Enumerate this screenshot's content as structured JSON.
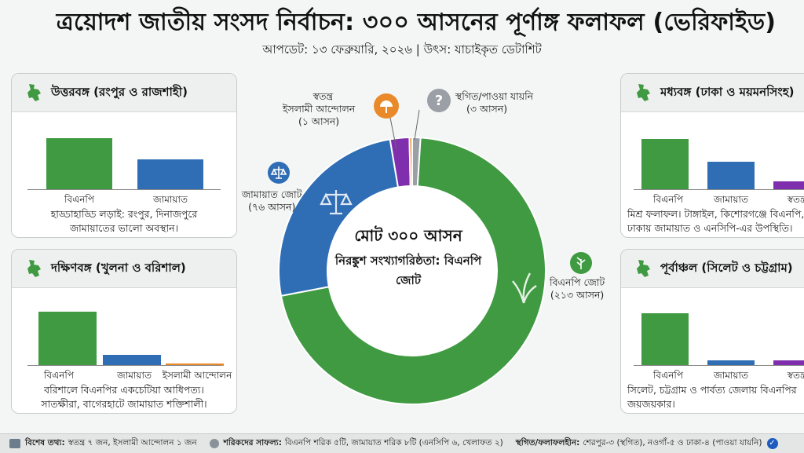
{
  "title": "ত্রয়োদশ জাতীয় সংসদ নির্বাচন: ৩০০ আসনের পূর্ণাঙ্গ ফলাফল (ভেরিফাইড)",
  "subtitle": "আপডেট: ১৩ ফেব্রুয়ারি, ২০২৬ | উৎস: যাচাইকৃত ডেটাশিট",
  "colors": {
    "bnp": "#3f9a41",
    "jamaat": "#2f6db5",
    "islami": "#e9892a",
    "independent": "#7f2fae",
    "pending": "#9aa0a6"
  },
  "chart_data": [
    {
      "type": "pie",
      "title": "মোট ৩০০ আসন",
      "subtitle": "নিরঙ্কুশ সংখ্যাগরিষ্ঠতা: বিএনপি জোট",
      "slices": [
        {
          "name": "বিএনপি জোট",
          "value": 213,
          "label": "বিএনপি জোট",
          "seats": "(২১৩ আসন)",
          "color": "#3f9a41"
        },
        {
          "name": "জামায়াত জোট",
          "value": 76,
          "label": "জামায়াত জোট",
          "seats": "(৭৬ আসন)",
          "color": "#2f6db5"
        },
        {
          "name": "স্বতন্ত্র",
          "value": 7,
          "label": "স্বতন্ত্র",
          "seats": "",
          "color": "#7f2fae"
        },
        {
          "name": "ইসলামী আন্দোলন",
          "value": 1,
          "label": "ইসলামী আন্দোলন",
          "seats": "(১ আসন)",
          "color": "#e9892a"
        },
        {
          "name": "স্থগিত/পাওয়া যায়নি",
          "value": 3,
          "label": "স্থগিত/পাওয়া যায়নি",
          "seats": "(৩ আসন)",
          "color": "#9aa0a6"
        }
      ]
    },
    {
      "type": "bar",
      "title": "উত্তরবঙ্গ (রংপুর ও রাজশাহী)",
      "categories": [
        "বিএনপি",
        "জামায়াত"
      ],
      "values": [
        0.75,
        0.44
      ]
    },
    {
      "type": "bar",
      "title": "দক্ষিণবঙ্গ (খুলনা ও বরিশাল)",
      "categories": [
        "বিএনপি",
        "জামায়াত",
        "ইসলামী আন্দোলন"
      ],
      "values": [
        0.78,
        0.16,
        0.03
      ]
    },
    {
      "type": "bar",
      "title": "মধ্যবঙ্গ (ঢাকা ও ময়মনসিংহ)",
      "categories": [
        "বিএনপি",
        "জামায়াত",
        "স্বতন্ত্র"
      ],
      "values": [
        0.74,
        0.41,
        0.12
      ]
    },
    {
      "type": "bar",
      "title": "পূর্বাঞ্চল (সিলেট ও চট্টগ্রাম)",
      "categories": [
        "বিএনপি",
        "জামায়াত",
        "স্বতন্ত্র"
      ],
      "values": [
        0.76,
        0.08,
        0.08
      ]
    }
  ],
  "cards": {
    "north": {
      "title": "উত্তরবঙ্গ (রংপুর ও রাজশাহী)",
      "cats": [
        "বিএনপি",
        "জামায়াত"
      ],
      "note1": "হাড্ডাহাড্ডি লড়াই: রংপুর, দিনাজপুরে",
      "note2": "জামায়াতের ভালো অবস্থান।"
    },
    "south": {
      "title": "দক্ষিণবঙ্গ (খুলনা ও বরিশাল)",
      "cats": [
        "বিএনপি",
        "জামায়াত",
        "ইসলামী আন্দোলন"
      ],
      "note1": "বরিশালে বিএনপির একচেটিয়া আধিপত্য।",
      "note2": "সাতক্ষীরা, বাগেরহাটে জামায়াত শক্তিশালী।"
    },
    "central": {
      "title": "মধ্যবঙ্গ (ঢাকা ও ময়মনসিংহ)",
      "cats": [
        "বিএনপি",
        "জামায়াত",
        "স্বতন্ত্র"
      ],
      "note1": "মিশ্র ফলাফল। টাঙ্গাইল, কিশোরগঞ্জে বিএনপি,",
      "note2": "ঢাকায় জামায়াত ও এনসিপি-এর উপস্থিতি।"
    },
    "east": {
      "title": "পূর্বাঞ্চল (সিলেট ও চট্টগ্রাম)",
      "cats": [
        "বিএনপি",
        "জামায়াত",
        "স্বতন্ত্র"
      ],
      "note1": "সিলেট, চট্টগ্রাম ও পার্বত্য জেলায় বিএনপির",
      "note2": "জয়জয়কার।"
    }
  },
  "footer": {
    "label1": "বিশেষ তথ্য:",
    "text1": "স্বতন্ত্র ৭ জন, ইসলামী আন্দোলন ১ জন",
    "label2": "শরিকদের সাফল্য:",
    "text2": "বিএনপি শরিক ৫টি, জামায়াত শরিক ৮টি (এনসিপি ৬, খেলাফত ২)",
    "label3": "স্থগিত/ফলাফলহীন:",
    "text3": "শেরপুর-৩ (স্থগিত), নওগাঁ-৫ ও ঢাকা-৪ (পাওয়া যায়নি)"
  }
}
